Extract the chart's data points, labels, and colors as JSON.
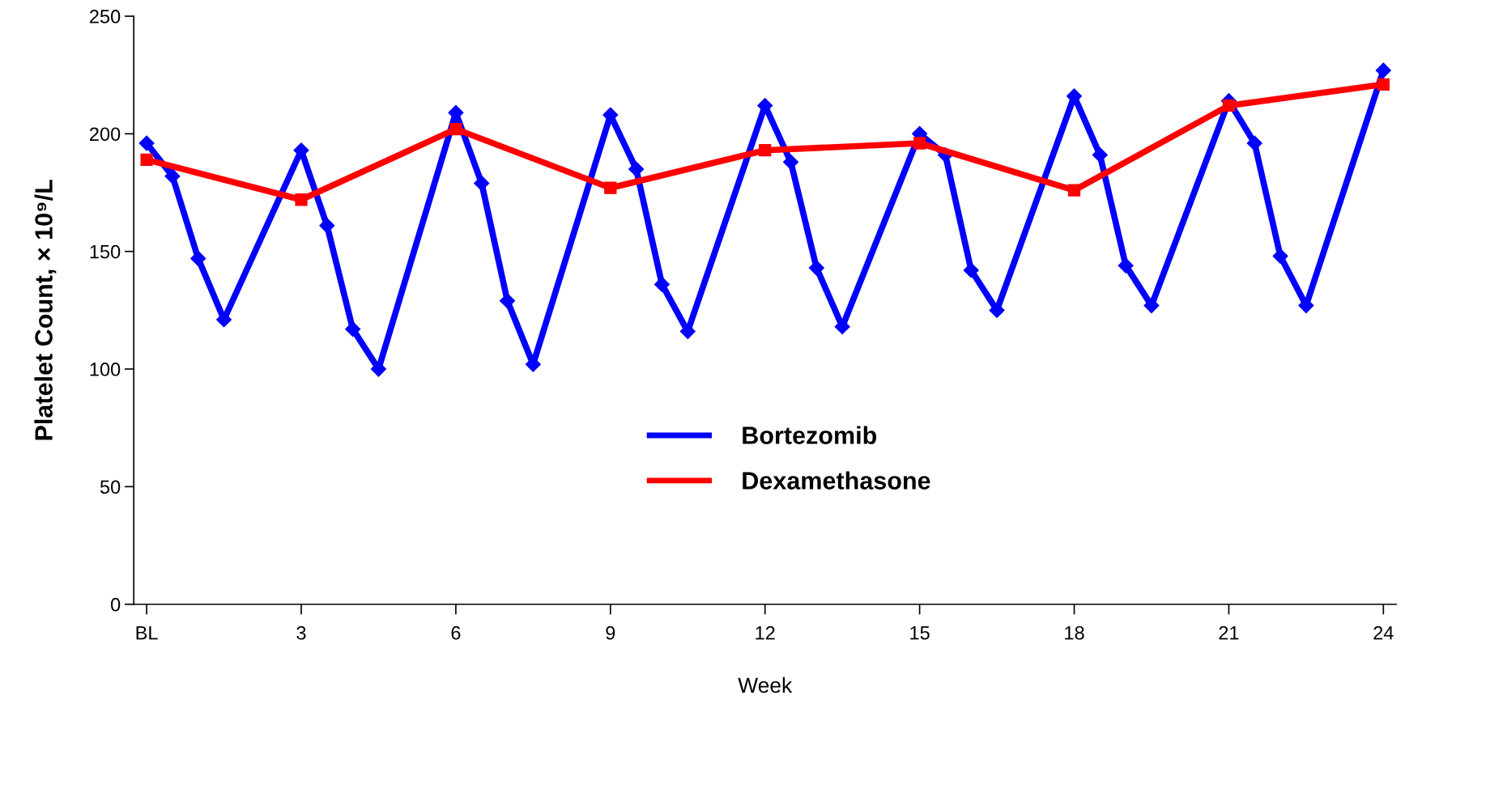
{
  "chart_data": {
    "type": "line",
    "xlabel": "Week",
    "ylabel": "Platelet Count, × 10⁹/L",
    "xlim": [
      -0.25,
      24.25
    ],
    "ylim": [
      0,
      250
    ],
    "yticks": [
      0,
      50,
      100,
      150,
      200,
      250
    ],
    "xticks": [
      {
        "value": 0,
        "label": "BL"
      },
      3,
      6,
      9,
      12,
      15,
      18,
      21,
      24
    ],
    "line_style": "solid",
    "grid": false,
    "legend": "center",
    "series": [
      {
        "name": "Bortezomib",
        "color": "#0000ff",
        "marker": "diamond",
        "x": [
          0,
          0.5,
          1,
          1.5,
          3,
          3.5,
          4,
          4.5,
          6,
          6.5,
          7,
          7.5,
          9,
          9.5,
          10,
          10.5,
          12,
          12.5,
          13,
          13.5,
          15,
          15.5,
          16,
          16.5,
          18,
          18.5,
          19,
          19.5,
          21,
          21.5,
          22,
          22.5,
          24
        ],
        "values": [
          196,
          182,
          147,
          121,
          193,
          161,
          117,
          100,
          209,
          179,
          129,
          102,
          208,
          185,
          136,
          116,
          212,
          188,
          143,
          118,
          200,
          191,
          142,
          125,
          216,
          191,
          144,
          127,
          214,
          196,
          148,
          127,
          227
        ]
      },
      {
        "name": "Dexamethasone",
        "color": "#ff0000",
        "marker": "square",
        "x": [
          0,
          3,
          6,
          9,
          12,
          15,
          18,
          21,
          24
        ],
        "values": [
          189,
          172,
          202,
          177,
          193,
          196,
          176,
          212,
          221
        ]
      }
    ]
  }
}
